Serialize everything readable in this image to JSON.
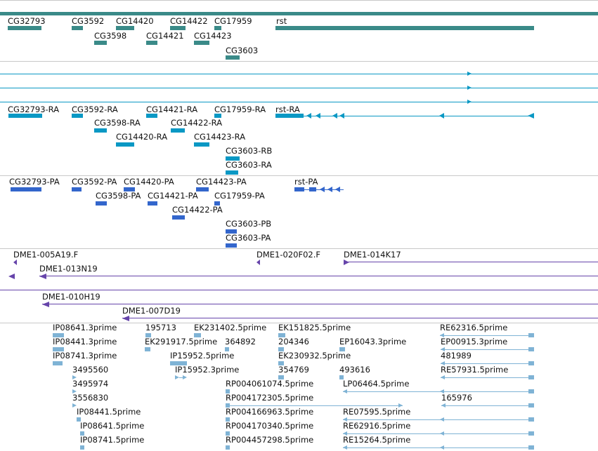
{
  "colors": {
    "gene": "#3a8a88",
    "transcript": "#0a98c4",
    "protein": "#3366cc",
    "clone": "#6644aa",
    "est": "#7fb3d5",
    "divider": "#c8c8c8"
  },
  "gene_track": {
    "labels": [
      "CG32793",
      "CG3592",
      "CG14420",
      "CG14422",
      "CG17959",
      "rst",
      "CG3598",
      "CG14421",
      "CG14423",
      "CG3603"
    ]
  },
  "transcript_track": {
    "labels": [
      "CG32793-RA",
      "CG3592-RA",
      "CG14421-RA",
      "CG17959-RA",
      "rst-RA",
      "CG3598-RA",
      "CG14422-RA",
      "CG14420-RA",
      "CG14423-RA",
      "CG3603-RB",
      "CG3603-RA"
    ]
  },
  "protein_track": {
    "labels": [
      "CG32793-PA",
      "CG3592-PA",
      "CG14420-PA",
      "CG14423-PA",
      "rst-PA",
      "CG3598-PA",
      "CG14421-PA",
      "CG17959-PA",
      "CG14422-PA",
      "CG3603-PB",
      "CG3603-PA"
    ]
  },
  "clone_track": {
    "labels": [
      "DME1-005A19.F",
      "DME1-020F02.F",
      "DME1-014K17",
      "DME1-013N19",
      "DME1-010H19",
      "DME1-007D19"
    ]
  },
  "est_track": {
    "labels": [
      "IP08641.3prime",
      "195713",
      "EK231402.5prime",
      "EK151825.5prime",
      "RE62316.5prime",
      "IP08441.3prime",
      "EK291917.5prime",
      "364892",
      "204346",
      "EP16043.3prime",
      "EP00915.3prime",
      "IP08741.3prime",
      "IP15952.5prime",
      "EK230932.5prime",
      "481989",
      "3495560",
      "IP15952.3prime",
      "354769",
      "493616",
      "RE57931.5prime",
      "3495974",
      "RP004061074.5prime",
      "LP06464.5prime",
      "3556830",
      "RP004172305.5prime",
      "165976",
      "IP08441.5prime",
      "RP004166963.5prime",
      "RE07595.5prime",
      "IP08641.5prime",
      "RP004170340.5prime",
      "RE62916.5prime",
      "IP08741.5prime",
      "RP004457298.5prime",
      "RE15264.5prime"
    ]
  }
}
